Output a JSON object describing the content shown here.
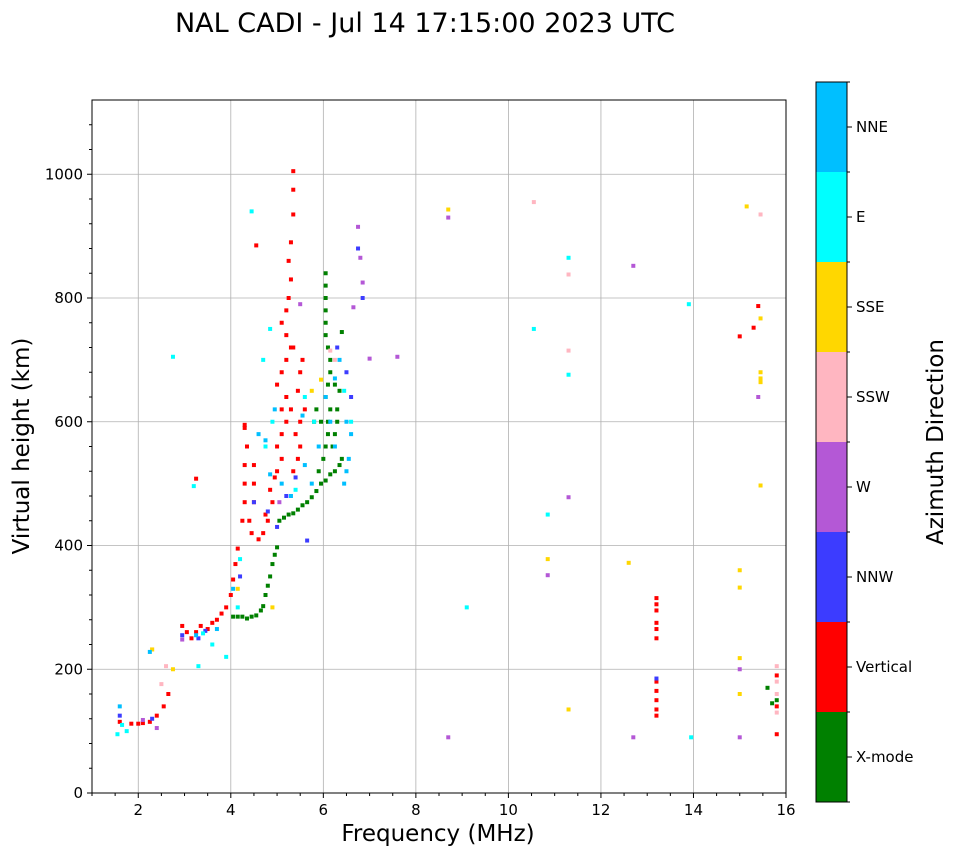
{
  "chart_data": {
    "type": "scatter",
    "title": "NAL CADI - Jul 14 17:15:00 2023 UTC",
    "xlabel": "Frequency (MHz)",
    "ylabel": "Virtual height (km)",
    "xlim": [
      1,
      16
    ],
    "ylim": [
      0,
      1120
    ],
    "xticks": [
      2,
      4,
      6,
      8,
      10,
      12,
      14,
      16
    ],
    "yticks": [
      0,
      200,
      400,
      600,
      800,
      1000
    ],
    "grid": true,
    "colorbar": {
      "label": "Azimuth Direction",
      "categories": [
        "X-mode",
        "Vertical",
        "NNW",
        "W",
        "SSW",
        "SSE",
        "E",
        "NNE"
      ],
      "colors": [
        "#008000",
        "#ff0000",
        "#3c3cff",
        "#b458d6",
        "#ffb6c1",
        "#ffd700",
        "#00ffff",
        "#00bfff"
      ]
    },
    "series": [
      {
        "name": "X-mode",
        "color": "#008000",
        "points": [
          [
            4.05,
            285
          ],
          [
            4.15,
            285
          ],
          [
            4.25,
            285
          ],
          [
            4.35,
            282
          ],
          [
            4.45,
            285
          ],
          [
            4.55,
            287
          ],
          [
            4.65,
            295
          ],
          [
            4.7,
            302
          ],
          [
            4.75,
            320
          ],
          [
            4.8,
            335
          ],
          [
            4.85,
            350
          ],
          [
            4.9,
            370
          ],
          [
            4.95,
            385
          ],
          [
            5.0,
            397
          ],
          [
            5.05,
            440
          ],
          [
            5.15,
            445
          ],
          [
            5.25,
            450
          ],
          [
            5.35,
            452
          ],
          [
            5.45,
            458
          ],
          [
            5.55,
            465
          ],
          [
            5.65,
            470
          ],
          [
            5.75,
            478
          ],
          [
            5.85,
            488
          ],
          [
            5.95,
            500
          ],
          [
            6.05,
            505
          ],
          [
            6.15,
            515
          ],
          [
            6.25,
            520
          ],
          [
            6.35,
            530
          ],
          [
            5.9,
            520
          ],
          [
            6.0,
            540
          ],
          [
            6.05,
            560
          ],
          [
            6.1,
            580
          ],
          [
            6.1,
            600
          ],
          [
            6.15,
            620
          ],
          [
            6.05,
            640
          ],
          [
            6.1,
            660
          ],
          [
            6.15,
            680
          ],
          [
            6.15,
            700
          ],
          [
            6.1,
            720
          ],
          [
            6.05,
            740
          ],
          [
            6.05,
            760
          ],
          [
            6.05,
            780
          ],
          [
            6.05,
            800
          ],
          [
            6.05,
            820
          ],
          [
            6.05,
            840
          ],
          [
            5.95,
            600
          ],
          [
            5.85,
            620
          ],
          [
            6.2,
            560
          ],
          [
            6.25,
            580
          ],
          [
            6.3,
            600
          ],
          [
            6.4,
            540
          ],
          [
            6.3,
            620
          ],
          [
            6.35,
            650
          ],
          [
            6.4,
            745
          ],
          [
            6.25,
            660
          ],
          [
            5.8,
            600
          ],
          [
            15.6,
            170
          ],
          [
            15.8,
            150
          ],
          [
            15.7,
            145
          ]
        ]
      },
      {
        "name": "Vertical",
        "color": "#ff0000",
        "points": [
          [
            1.6,
            115
          ],
          [
            1.85,
            112
          ],
          [
            2.0,
            112
          ],
          [
            2.1,
            113
          ],
          [
            2.25,
            115
          ],
          [
            2.4,
            125
          ],
          [
            2.55,
            140
          ],
          [
            2.65,
            160
          ],
          [
            2.95,
            270
          ],
          [
            3.05,
            260
          ],
          [
            3.15,
            250
          ],
          [
            3.25,
            260
          ],
          [
            3.35,
            270
          ],
          [
            3.5,
            265
          ],
          [
            3.6,
            275
          ],
          [
            3.7,
            280
          ],
          [
            3.8,
            290
          ],
          [
            3.9,
            300
          ],
          [
            4.0,
            320
          ],
          [
            4.05,
            345
          ],
          [
            4.1,
            370
          ],
          [
            4.15,
            395
          ],
          [
            4.25,
            440
          ],
          [
            4.3,
            470
          ],
          [
            4.3,
            500
          ],
          [
            4.3,
            530
          ],
          [
            4.35,
            560
          ],
          [
            4.3,
            590
          ],
          [
            4.4,
            440
          ],
          [
            4.5,
            470
          ],
          [
            4.5,
            500
          ],
          [
            4.5,
            530
          ],
          [
            4.6,
            410
          ],
          [
            4.7,
            420
          ],
          [
            4.8,
            440
          ],
          [
            4.9,
            470
          ],
          [
            4.95,
            510
          ],
          [
            5.0,
            520
          ],
          [
            5.1,
            540
          ],
          [
            5.0,
            560
          ],
          [
            5.1,
            580
          ],
          [
            5.2,
            600
          ],
          [
            5.1,
            620
          ],
          [
            5.2,
            640
          ],
          [
            5.0,
            660
          ],
          [
            5.1,
            680
          ],
          [
            5.2,
            700
          ],
          [
            5.3,
            720
          ],
          [
            5.2,
            740
          ],
          [
            5.1,
            760
          ],
          [
            5.2,
            780
          ],
          [
            5.25,
            800
          ],
          [
            5.3,
            830
          ],
          [
            5.25,
            860
          ],
          [
            5.3,
            890
          ],
          [
            5.35,
            935
          ],
          [
            5.35,
            975
          ],
          [
            5.35,
            1005
          ],
          [
            5.35,
            520
          ],
          [
            5.45,
            540
          ],
          [
            5.4,
            580
          ],
          [
            5.3,
            620
          ],
          [
            5.45,
            650
          ],
          [
            5.5,
            680
          ],
          [
            5.35,
            720
          ],
          [
            5.5,
            560
          ],
          [
            5.5,
            600
          ],
          [
            5.6,
            620
          ],
          [
            4.45,
            420
          ],
          [
            4.75,
            450
          ],
          [
            4.85,
            490
          ],
          [
            5.55,
            700
          ],
          [
            3.25,
            508
          ],
          [
            4.55,
            885
          ],
          [
            4.3,
            595
          ],
          [
            13.2,
            315
          ],
          [
            13.2,
            305
          ],
          [
            13.2,
            295
          ],
          [
            13.2,
            275
          ],
          [
            13.2,
            265
          ],
          [
            13.2,
            250
          ],
          [
            13.2,
            180
          ],
          [
            13.2,
            165
          ],
          [
            13.2,
            150
          ],
          [
            13.2,
            135
          ],
          [
            13.2,
            125
          ],
          [
            15.0,
            738
          ],
          [
            15.3,
            752
          ],
          [
            15.4,
            787
          ],
          [
            15.8,
            190
          ],
          [
            15.8,
            140
          ],
          [
            15.8,
            95
          ]
        ]
      },
      {
        "name": "NNW",
        "color": "#3c3cff",
        "points": [
          [
            1.6,
            125
          ],
          [
            2.3,
            120
          ],
          [
            2.95,
            255
          ],
          [
            3.3,
            250
          ],
          [
            3.45,
            262
          ],
          [
            4.2,
            350
          ],
          [
            4.5,
            470
          ],
          [
            4.8,
            455
          ],
          [
            5.0,
            430
          ],
          [
            5.2,
            480
          ],
          [
            5.4,
            510
          ],
          [
            5.65,
            408
          ],
          [
            6.3,
            720
          ],
          [
            6.5,
            680
          ],
          [
            6.6,
            640
          ],
          [
            6.75,
            880
          ],
          [
            6.85,
            800
          ],
          [
            13.2,
            185
          ]
        ]
      },
      {
        "name": "W",
        "color": "#b458d6",
        "points": [
          [
            2.4,
            105
          ],
          [
            2.1,
            118
          ],
          [
            2.95,
            248
          ],
          [
            5.05,
            470
          ],
          [
            5.5,
            790
          ],
          [
            6.65,
            785
          ],
          [
            6.75,
            915
          ],
          [
            6.8,
            865
          ],
          [
            6.85,
            825
          ],
          [
            7.0,
            702
          ],
          [
            7.6,
            705
          ],
          [
            8.7,
            930
          ],
          [
            8.7,
            90
          ],
          [
            10.85,
            352
          ],
          [
            11.3,
            478
          ],
          [
            12.7,
            852
          ],
          [
            12.7,
            90
          ],
          [
            15.0,
            90
          ],
          [
            15.0,
            200
          ],
          [
            15.4,
            640
          ]
        ]
      },
      {
        "name": "SSW",
        "color": "#ffb6c1",
        "points": [
          [
            2.3,
            232
          ],
          [
            2.5,
            176
          ],
          [
            2.6,
            205
          ],
          [
            6.15,
            715
          ],
          [
            6.25,
            700
          ],
          [
            10.55,
            955
          ],
          [
            11.3,
            838
          ],
          [
            11.3,
            715
          ],
          [
            15.45,
            935
          ],
          [
            15.8,
            205
          ],
          [
            15.8,
            180
          ],
          [
            15.8,
            160
          ],
          [
            15.8,
            130
          ]
        ]
      },
      {
        "name": "SSE",
        "color": "#ffd700",
        "points": [
          [
            2.3,
            232
          ],
          [
            2.75,
            200
          ],
          [
            4.15,
            330
          ],
          [
            4.9,
            300
          ],
          [
            5.75,
            650
          ],
          [
            5.95,
            668
          ],
          [
            8.7,
            943
          ],
          [
            10.85,
            378
          ],
          [
            11.3,
            135
          ],
          [
            12.6,
            372
          ],
          [
            15.15,
            948
          ],
          [
            15.0,
            360
          ],
          [
            15.0,
            332
          ],
          [
            15.0,
            218
          ],
          [
            15.0,
            160
          ],
          [
            15.45,
            767
          ],
          [
            15.45,
            497
          ],
          [
            15.45,
            680
          ],
          [
            15.45,
            670
          ],
          [
            15.45,
            664
          ]
        ]
      },
      {
        "name": "E",
        "color": "#00ffff",
        "points": [
          [
            1.55,
            95
          ],
          [
            1.65,
            110
          ],
          [
            1.75,
            100
          ],
          [
            2.75,
            705
          ],
          [
            3.2,
            496
          ],
          [
            3.3,
            205
          ],
          [
            3.4,
            258
          ],
          [
            3.6,
            240
          ],
          [
            3.9,
            220
          ],
          [
            4.15,
            300
          ],
          [
            4.2,
            378
          ],
          [
            4.45,
            940
          ],
          [
            4.75,
            560
          ],
          [
            4.9,
            600
          ],
          [
            5.4,
            490
          ],
          [
            5.6,
            640
          ],
          [
            5.8,
            600
          ],
          [
            6.45,
            650
          ],
          [
            6.6,
            600
          ],
          [
            9.1,
            300
          ],
          [
            10.55,
            750
          ],
          [
            10.85,
            450
          ],
          [
            11.3,
            865
          ],
          [
            11.3,
            676
          ],
          [
            13.9,
            790
          ],
          [
            13.95,
            90
          ],
          [
            4.85,
            750
          ],
          [
            4.7,
            700
          ]
        ]
      },
      {
        "name": "NNE",
        "color": "#00bfff",
        "points": [
          [
            1.6,
            140
          ],
          [
            2.25,
            228
          ],
          [
            3.25,
            255
          ],
          [
            3.7,
            265
          ],
          [
            4.05,
            330
          ],
          [
            4.6,
            580
          ],
          [
            4.75,
            570
          ],
          [
            4.85,
            515
          ],
          [
            4.95,
            620
          ],
          [
            5.1,
            500
          ],
          [
            5.3,
            480
          ],
          [
            5.55,
            610
          ],
          [
            5.6,
            530
          ],
          [
            5.75,
            500
          ],
          [
            5.9,
            560
          ],
          [
            6.05,
            640
          ],
          [
            6.15,
            600
          ],
          [
            6.25,
            560
          ],
          [
            6.35,
            700
          ],
          [
            6.45,
            500
          ],
          [
            6.5,
            600
          ],
          [
            6.55,
            540
          ],
          [
            6.6,
            580
          ],
          [
            6.5,
            520
          ],
          [
            6.25,
            670
          ]
        ]
      }
    ]
  }
}
